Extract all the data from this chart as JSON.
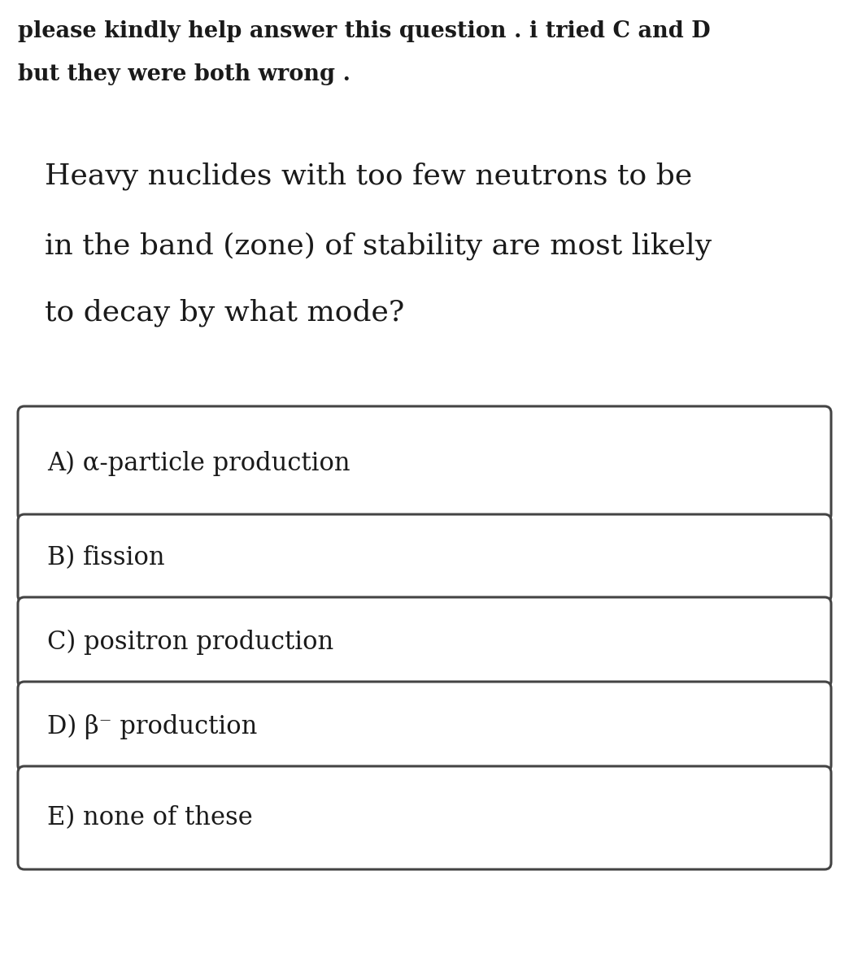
{
  "header_line1": "please kindly help answer this question . i tried C and D",
  "header_line2": "but they were both wrong .",
  "question_line1": "Heavy nuclides with too few neutrons to be",
  "question_line2": "in the band (zone) of stability are most likely",
  "question_line3": "to decay by what mode?",
  "options": [
    "A) α-particle production",
    "B) fission",
    "C) positron production",
    "D) β⁻ production",
    "E) none of these"
  ],
  "background_color": "#ffffff",
  "text_color": "#1a1a1a",
  "box_edge_color": "#444444",
  "header_fontsize": 19.5,
  "question_fontsize": 26,
  "option_fontsize": 22
}
